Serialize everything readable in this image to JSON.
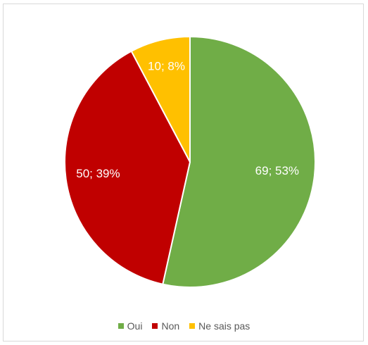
{
  "chart_data": {
    "type": "pie",
    "categories": [
      "Oui",
      "Non",
      "Ne sais pas"
    ],
    "values": [
      69,
      50,
      10
    ],
    "percent_labels": [
      "53%",
      "39%",
      "8%"
    ],
    "data_labels": [
      "69; 53%",
      "50; 39%",
      "10; 8%"
    ],
    "colors": [
      "#70ad47",
      "#c00000",
      "#ffc000"
    ],
    "start_angle_deg": 0,
    "direction": "clockwise",
    "legend_position": "bottom",
    "title": ""
  }
}
